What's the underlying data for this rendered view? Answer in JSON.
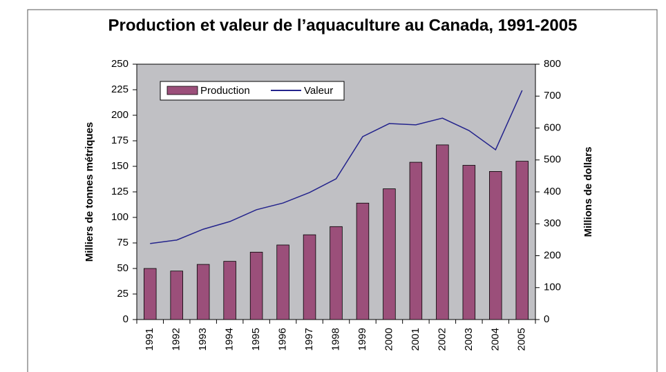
{
  "chart_data": {
    "type": "bar_line",
    "title": "Production et valeur de l’aquaculture au Canada, 1991-2005",
    "y_label": "Milliers de tonnes métriques",
    "y2_label": "Millions de dollars",
    "categories": [
      "1991",
      "1992",
      "1993",
      "1994",
      "1995",
      "1996",
      "1997",
      "1998",
      "1999",
      "2000",
      "2001",
      "2002",
      "2003",
      "2004",
      "2005"
    ],
    "series": [
      {
        "name": "Production",
        "type": "bar",
        "color": "#9b4f7a",
        "values": [
          50,
          47.5,
          54,
          57,
          66,
          73,
          83,
          91,
          114,
          128,
          154,
          171,
          151,
          145,
          155
        ]
      },
      {
        "name": "Valeur",
        "type": "line",
        "axis": "y2",
        "color": "#23238c",
        "values": [
          238,
          249,
          283,
          307,
          344,
          365,
          398,
          441,
          573,
          614,
          610,
          631,
          592,
          532,
          718
        ]
      }
    ],
    "ylim": [
      0,
      250
    ],
    "yticks": [
      0,
      25,
      50,
      75,
      100,
      125,
      150,
      175,
      200,
      225,
      250
    ],
    "y2lim": [
      0,
      800
    ],
    "y2ticks": [
      0,
      100,
      200,
      300,
      400,
      500,
      600,
      700,
      800
    ],
    "plot_background": "#c0c0c4"
  }
}
